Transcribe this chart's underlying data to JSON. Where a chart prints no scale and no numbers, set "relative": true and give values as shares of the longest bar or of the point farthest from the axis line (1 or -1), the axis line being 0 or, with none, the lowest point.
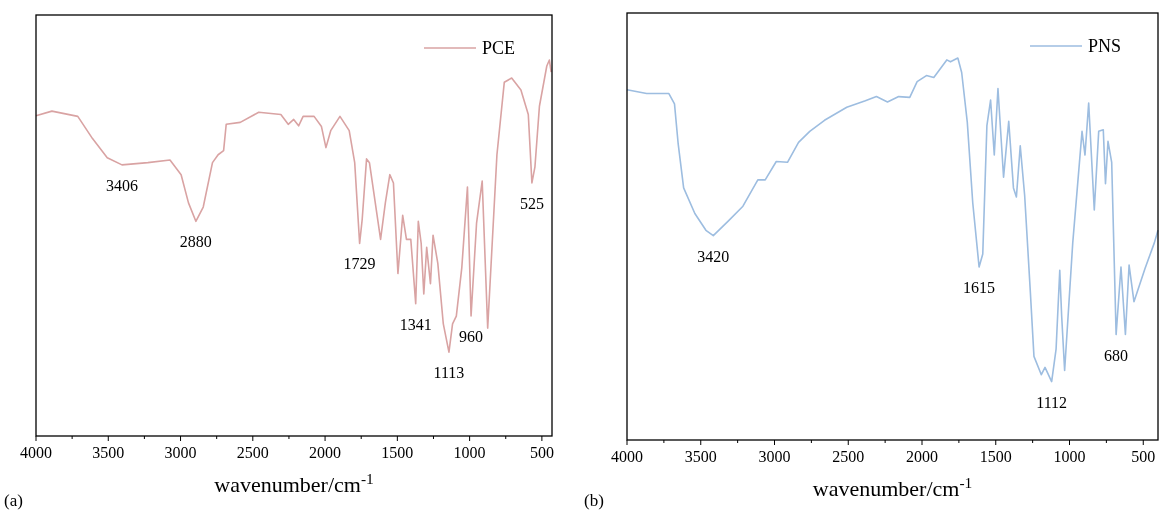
{
  "chart_data": [
    {
      "type": "line",
      "relative": true,
      "xlabel": "wavenumber/cm$^{-1}$",
      "xlim": [
        4000,
        430
      ],
      "xticks": [
        4000,
        {
          "value": 3750,
          "label": null
        },
        3500,
        {
          "value": 3250,
          "label": null
        },
        3000,
        {
          "value": 2750,
          "label": null
        },
        2500,
        {
          "value": 2250,
          "label": null
        },
        2000,
        {
          "value": 1750,
          "label": null
        },
        1500,
        {
          "value": 1250,
          "label": null
        },
        1000,
        {
          "value": 750,
          "label": null
        },
        500
      ],
      "legend": "top right",
      "grid": false,
      "series": [
        {
          "name": "PCE",
          "color": "#d9a3a3",
          "x": [
            4000,
            3890,
            3711,
            3609,
            3507,
            3405,
            3226,
            3073,
            2996,
            2945,
            2894,
            2843,
            2779,
            2740,
            2702,
            2684,
            2587,
            2459,
            2306,
            2255,
            2217,
            2183,
            2152,
            2076,
            2025,
            1994,
            1961,
            1897,
            1833,
            1795,
            1761,
            1743,
            1713,
            1693,
            1616,
            1583,
            1552,
            1527,
            1496,
            1463,
            1437,
            1407,
            1373,
            1355,
            1335,
            1317,
            1297,
            1271,
            1253,
            1220,
            1182,
            1143,
            1118,
            1092,
            1054,
            1015,
            990,
            952,
            913,
            875,
            811,
            760,
            709,
            645,
            594,
            569,
            548,
            517,
            466,
            448,
            436
          ],
          "values": [
            0.852,
            0.864,
            0.85,
            0.791,
            0.74,
            0.721,
            0.727,
            0.734,
            0.695,
            0.62,
            0.571,
            0.609,
            0.727,
            0.748,
            0.759,
            0.829,
            0.834,
            0.861,
            0.855,
            0.829,
            0.842,
            0.825,
            0.85,
            0.85,
            0.823,
            0.767,
            0.812,
            0.85,
            0.812,
            0.727,
            0.512,
            0.577,
            0.737,
            0.727,
            0.523,
            0.62,
            0.695,
            0.673,
            0.432,
            0.587,
            0.523,
            0.523,
            0.352,
            0.571,
            0.512,
            0.378,
            0.502,
            0.405,
            0.534,
            0.459,
            0.298,
            0.223,
            0.298,
            0.319,
            0.448,
            0.662,
            0.319,
            0.566,
            0.678,
            0.287,
            0.748,
            0.941,
            0.952,
            0.92,
            0.855,
            0.673,
            0.716,
            0.877,
            0.984,
            1.0,
            0.968
          ]
        }
      ],
      "annotations": [
        {
          "text": "3406",
          "x": 3405,
          "y": 0.721
        },
        {
          "text": "2880",
          "x": 2894,
          "y": 0.571
        },
        {
          "text": "1729",
          "x": 1761,
          "y": 0.512
        },
        {
          "text": "1341",
          "x": 1373,
          "y": 0.352
        },
        {
          "text": "1113",
          "x": 1143,
          "y": 0.223
        },
        {
          "text": "960",
          "x": 990,
          "y": 0.319
        },
        {
          "text": "525",
          "x": 569,
          "y": 0.673
        },
        "(a)"
      ]
    },
    {
      "type": "line",
      "relative": true,
      "xlabel": "wavenumber/cm$^{-1}$",
      "xlim": [
        4000,
        400
      ],
      "xticks": [
        4000,
        {
          "value": 3750,
          "label": null
        },
        3500,
        {
          "value": 3250,
          "label": null
        },
        3000,
        {
          "value": 2750,
          "label": null
        },
        2500,
        {
          "value": 2250,
          "label": null
        },
        2000,
        {
          "value": 1750,
          "label": null
        },
        1500,
        {
          "value": 1250,
          "label": null
        },
        1000,
        {
          "value": 750,
          "label": null
        },
        500
      ],
      "legend": "top right",
      "grid": false,
      "series": [
        {
          "name": "PNS",
          "color": "#9dbde0",
          "x": [
            4000,
            3867,
            3716,
            3678,
            3653,
            3616,
            3540,
            3465,
            3415,
            3314,
            3214,
            3113,
            3063,
            2988,
            2912,
            2837,
            2761,
            2661,
            2510,
            2384,
            2309,
            2234,
            2158,
            2083,
            2033,
            1970,
            1920,
            1832,
            1807,
            1757,
            1731,
            1693,
            1656,
            1613,
            1588,
            1560,
            1535,
            1510,
            1485,
            1447,
            1412,
            1380,
            1360,
            1334,
            1304,
            1266,
            1241,
            1191,
            1166,
            1121,
            1091,
            1066,
            1053,
            1033,
            978,
            915,
            895,
            870,
            832,
            802,
            771,
            756,
            739,
            714,
            684,
            651,
            621,
            596,
            563,
            488,
            425,
            400
          ],
          "values": [
            0.917,
            0.907,
            0.907,
            0.88,
            0.775,
            0.66,
            0.593,
            0.549,
            0.535,
            0.573,
            0.612,
            0.681,
            0.681,
            0.729,
            0.727,
            0.779,
            0.808,
            0.837,
            0.871,
            0.888,
            0.899,
            0.885,
            0.899,
            0.897,
            0.938,
            0.954,
            0.949,
            0.995,
            0.99,
            1.0,
            0.962,
            0.832,
            0.621,
            0.453,
            0.487,
            0.823,
            0.89,
            0.746,
            0.92,
            0.688,
            0.834,
            0.66,
            0.636,
            0.77,
            0.64,
            0.391,
            0.219,
            0.171,
            0.19,
            0.153,
            0.238,
            0.444,
            0.324,
            0.182,
            0.516,
            0.808,
            0.746,
            0.882,
            0.602,
            0.808,
            0.812,
            0.671,
            0.782,
            0.727,
            0.276,
            0.453,
            0.276,
            0.458,
            0.362,
            0.449,
            0.516,
            0.549
          ]
        }
      ],
      "annotations": [
        {
          "text": "3420",
          "x": 3415,
          "y": 0.535
        },
        {
          "text": "1615",
          "x": 1613,
          "y": 0.453
        },
        {
          "text": "1112",
          "x": 1121,
          "y": 0.153
        },
        {
          "text": "680",
          "x": 684,
          "y": 0.276
        },
        "(b)"
      ]
    }
  ]
}
